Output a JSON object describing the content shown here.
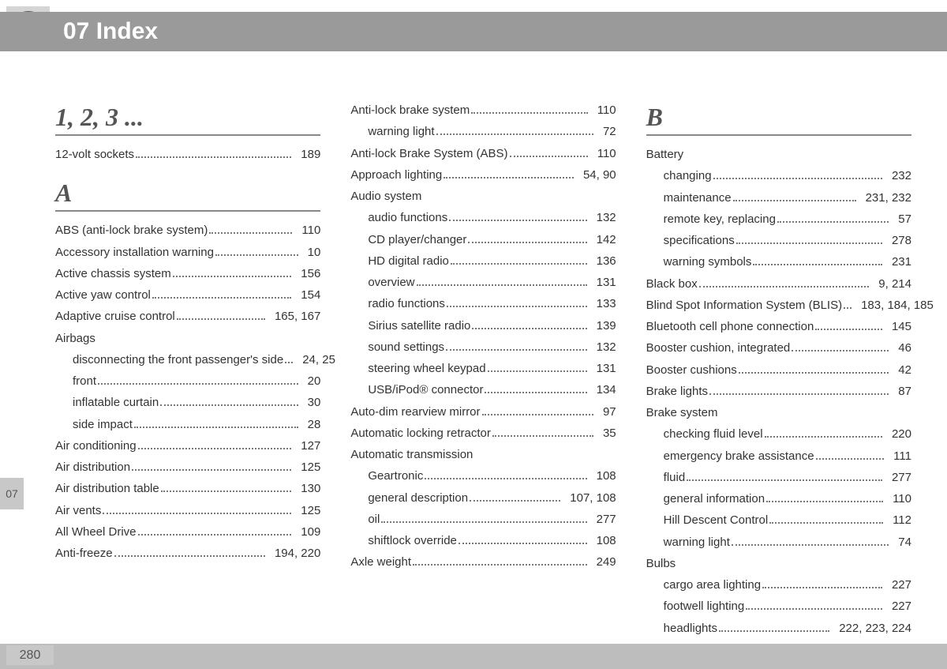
{
  "header": {
    "badge_text": "A-Z",
    "title": "07 Index"
  },
  "side_tab": "07",
  "page_number": "280",
  "columns": [
    [
      {
        "type": "section",
        "text": "1, 2, 3 ..."
      },
      {
        "type": "entry",
        "label": "12-volt sockets",
        "pages": "189"
      },
      {
        "type": "section",
        "text": "A"
      },
      {
        "type": "entry",
        "label": "ABS (anti-lock brake system)",
        "pages": "110"
      },
      {
        "type": "entry",
        "label": "Accessory installation warning",
        "pages": "10"
      },
      {
        "type": "entry",
        "label": "Active chassis system",
        "pages": "156"
      },
      {
        "type": "entry",
        "label": "Active yaw control",
        "pages": "154"
      },
      {
        "type": "entry",
        "label": "Adaptive cruise control",
        "pages": "165, 167"
      },
      {
        "type": "group",
        "label": "Airbags"
      },
      {
        "type": "sub",
        "label": "disconnecting the front passenger's side",
        "pages": "24, 25"
      },
      {
        "type": "sub",
        "label": "front",
        "pages": "20"
      },
      {
        "type": "sub",
        "label": "inflatable curtain",
        "pages": "30"
      },
      {
        "type": "sub",
        "label": "side impact",
        "pages": "28"
      },
      {
        "type": "entry",
        "label": "Air conditioning",
        "pages": "127"
      },
      {
        "type": "entry",
        "label": "Air distribution",
        "pages": "125"
      },
      {
        "type": "entry",
        "label": "Air distribution table",
        "pages": "130"
      },
      {
        "type": "entry",
        "label": "Air vents",
        "pages": "125"
      },
      {
        "type": "entry",
        "label": "All Wheel Drive",
        "pages": "109"
      },
      {
        "type": "entry",
        "label": "Anti-freeze",
        "pages": "194, 220"
      }
    ],
    [
      {
        "type": "entry",
        "label": "Anti-lock brake system",
        "pages": "110"
      },
      {
        "type": "sub",
        "label": "warning light",
        "pages": "72"
      },
      {
        "type": "entry",
        "label": "Anti-lock Brake System (ABS)",
        "pages": "110"
      },
      {
        "type": "entry",
        "label": "Approach lighting",
        "pages": "54, 90"
      },
      {
        "type": "group",
        "label": "Audio system"
      },
      {
        "type": "sub",
        "label": "audio functions",
        "pages": "132"
      },
      {
        "type": "sub",
        "label": "CD player/changer",
        "pages": "142"
      },
      {
        "type": "sub",
        "label": "HD digital radio",
        "pages": "136"
      },
      {
        "type": "sub",
        "label": "overview",
        "pages": "131"
      },
      {
        "type": "sub",
        "label": "radio functions",
        "pages": "133"
      },
      {
        "type": "sub",
        "label": "Sirius satellite radio",
        "pages": "139"
      },
      {
        "type": "sub",
        "label": "sound settings",
        "pages": "132"
      },
      {
        "type": "sub",
        "label": "steering wheel keypad",
        "pages": "131"
      },
      {
        "type": "sub",
        "label": "USB/iPod® connector",
        "pages": "134"
      },
      {
        "type": "entry",
        "label": "Auto-dim rearview mirror",
        "pages": "97"
      },
      {
        "type": "entry",
        "label": "Automatic locking retractor",
        "pages": "35"
      },
      {
        "type": "group",
        "label": "Automatic transmission"
      },
      {
        "type": "sub",
        "label": "Geartronic",
        "pages": "108"
      },
      {
        "type": "sub",
        "label": "general description",
        "pages": "107, 108"
      },
      {
        "type": "sub",
        "label": "oil",
        "pages": "277"
      },
      {
        "type": "sub",
        "label": "shiftlock override",
        "pages": "108"
      },
      {
        "type": "entry",
        "label": "Axle weight",
        "pages": "249"
      }
    ],
    [
      {
        "type": "section",
        "text": "B"
      },
      {
        "type": "group",
        "label": "Battery"
      },
      {
        "type": "sub",
        "label": "changing",
        "pages": "232"
      },
      {
        "type": "sub",
        "label": "maintenance",
        "pages": "231, 232"
      },
      {
        "type": "sub",
        "label": "remote key, replacing",
        "pages": "57"
      },
      {
        "type": "sub",
        "label": "specifications",
        "pages": "278"
      },
      {
        "type": "sub",
        "label": "warning symbols",
        "pages": "231"
      },
      {
        "type": "entry",
        "label": "Black box",
        "pages": "9, 214"
      },
      {
        "type": "entry",
        "label": "Blind Spot Information System (BLIS)",
        "pages": "183, 184, 185"
      },
      {
        "type": "entry",
        "label": "Bluetooth cell phone connection",
        "pages": "145"
      },
      {
        "type": "entry",
        "label": "Booster cushion, integrated",
        "pages": "46"
      },
      {
        "type": "entry",
        "label": "Booster cushions",
        "pages": "42"
      },
      {
        "type": "entry",
        "label": "Brake lights",
        "pages": "87"
      },
      {
        "type": "group",
        "label": "Brake system"
      },
      {
        "type": "sub",
        "label": "checking fluid level",
        "pages": "220"
      },
      {
        "type": "sub",
        "label": "emergency brake assistance",
        "pages": "111"
      },
      {
        "type": "sub",
        "label": "fluid",
        "pages": "277"
      },
      {
        "type": "sub",
        "label": "general information",
        "pages": "110"
      },
      {
        "type": "sub",
        "label": "Hill Descent Control",
        "pages": "112"
      },
      {
        "type": "sub",
        "label": "warning light",
        "pages": "74"
      },
      {
        "type": "group",
        "label": "Bulbs"
      },
      {
        "type": "sub",
        "label": "cargo area lighting",
        "pages": "227"
      },
      {
        "type": "sub",
        "label": "footwell lighting",
        "pages": "227"
      },
      {
        "type": "sub",
        "label": "headlights",
        "pages": "222, 223, 224"
      }
    ]
  ]
}
